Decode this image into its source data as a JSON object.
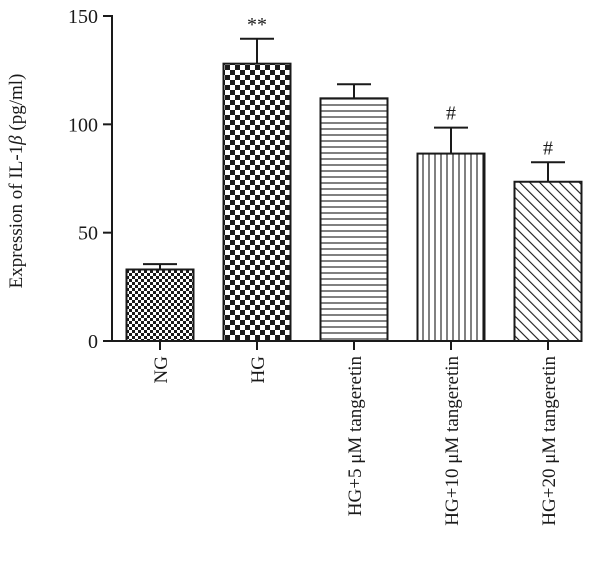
{
  "chart_data": {
    "type": "bar",
    "ylabel_prefix": "Expression of IL-1",
    "ylabel_symbol": "β",
    "ylabel_suffix": " (pg/ml)",
    "ylim": [
      0,
      150
    ],
    "yticks": [
      0,
      50,
      100,
      150
    ],
    "categories": [
      "NG",
      "HG",
      "HG+5 μM tangeretin",
      "HG+10 μM tangeretin",
      "HG+20 μM tangeretin"
    ],
    "values": [
      33,
      128,
      112,
      86.5,
      73.5
    ],
    "errors": [
      2.5,
      11.5,
      6.5,
      12,
      9
    ],
    "patterns": [
      "fine-checker",
      "coarse-checker",
      "horizontal-lines",
      "vertical-lines",
      "diagonal-lines"
    ],
    "significance": [
      "",
      "**",
      "",
      "#",
      "#"
    ],
    "colors": {
      "ink": "#1a1a1a",
      "background": "#ffffff"
    }
  }
}
